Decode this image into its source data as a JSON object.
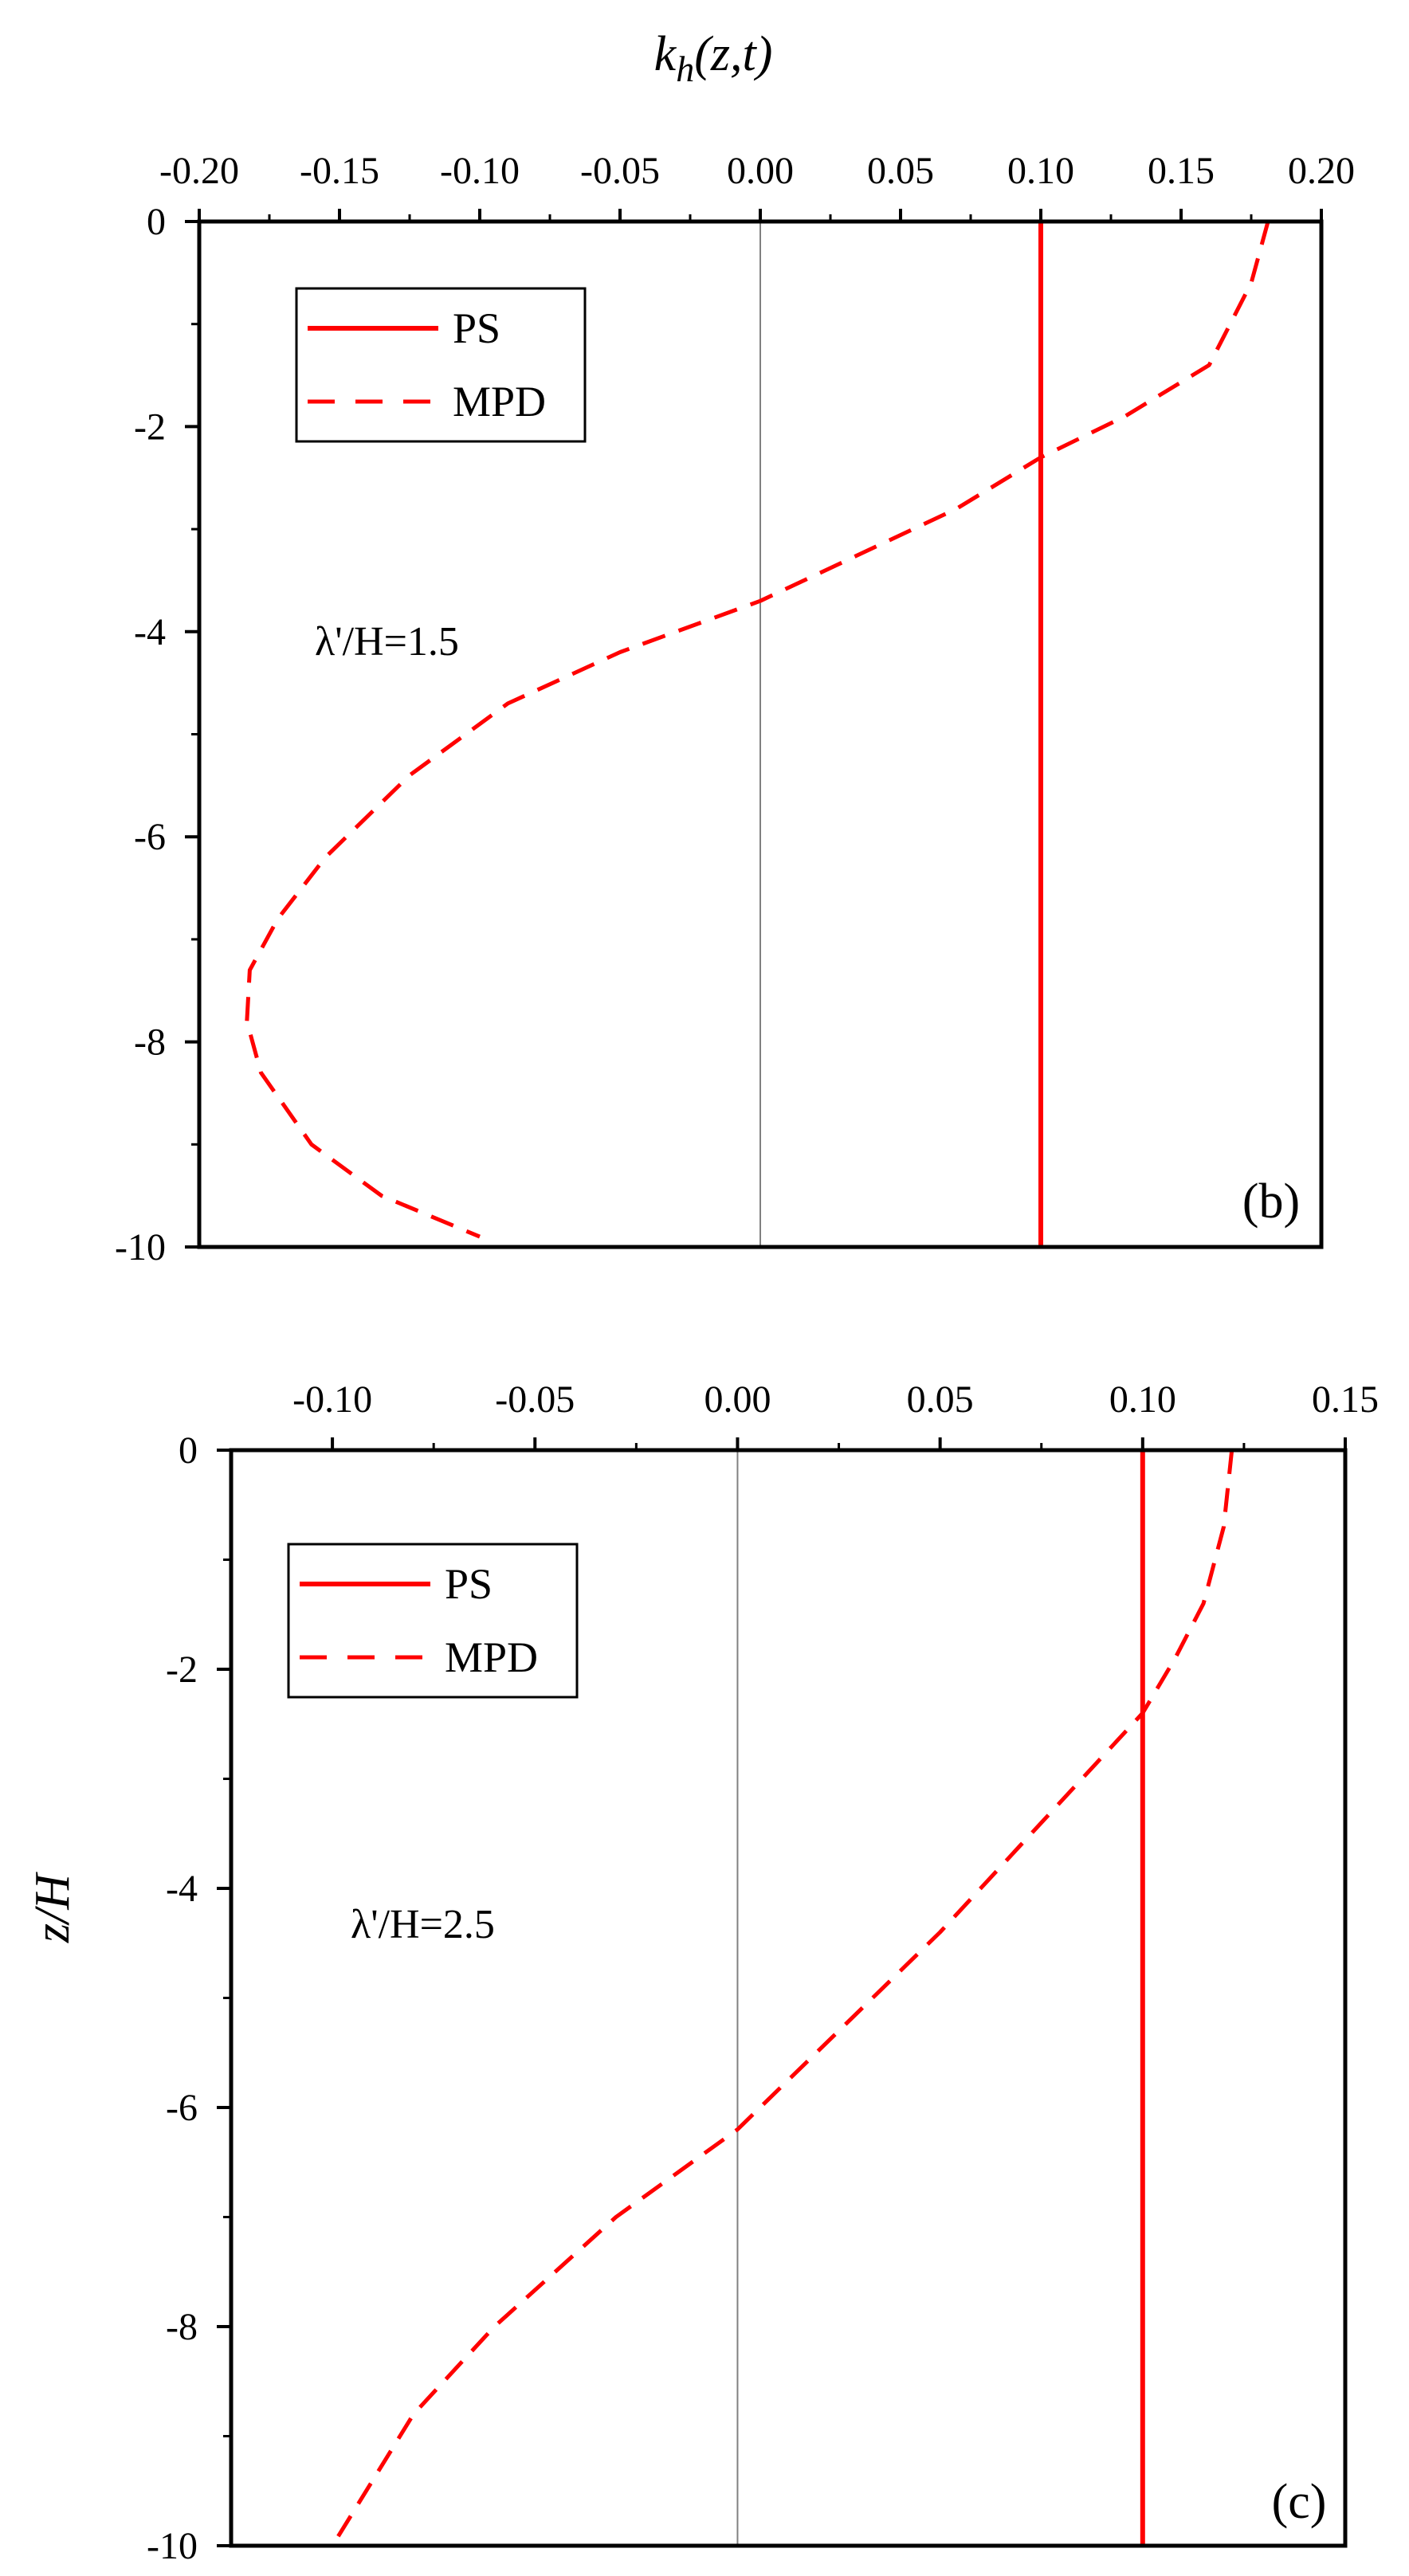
{
  "figure": {
    "top_axis_title": "k_h(z,t)",
    "left_axis_title": "z/H"
  },
  "chart_data": [
    {
      "type": "line",
      "panel_label": "(b)",
      "annotation": "λ'/H=1.5",
      "x_ticks": [
        "-0.20",
        "-0.15",
        "-0.10",
        "-0.05",
        "0.00",
        "0.05",
        "0.10",
        "0.15",
        "0.20"
      ],
      "y_ticks": [
        "0",
        "-2",
        "-4",
        "-6",
        "-8",
        "-10"
      ],
      "xlim": [
        -0.2,
        0.2
      ],
      "ylim": [
        -10,
        0
      ],
      "legend_position": "top-left",
      "color": "#ff0000",
      "series": [
        {
          "name": "PS",
          "style": "solid",
          "x": [
            0.1,
            0.1
          ],
          "y": [
            0,
            -10
          ]
        },
        {
          "name": "MPD",
          "style": "dashed",
          "x": [
            0.181,
            0.175,
            0.16,
            0.13,
            0.1,
            0.07,
            0.0,
            -0.05,
            -0.09,
            -0.125,
            -0.155,
            -0.172,
            -0.182,
            -0.183,
            -0.178,
            -0.16,
            -0.135,
            -0.1
          ],
          "y": [
            0,
            -0.6,
            -1.4,
            -1.9,
            -2.3,
            -2.8,
            -3.7,
            -4.2,
            -4.7,
            -5.4,
            -6.2,
            -6.8,
            -7.3,
            -7.8,
            -8.3,
            -9.0,
            -9.5,
            -9.9
          ]
        }
      ]
    },
    {
      "type": "line",
      "panel_label": "(c)",
      "annotation": "λ'/H=2.5",
      "x_ticks": [
        "-0.10",
        "-0.05",
        "0.00",
        "0.05",
        "0.10",
        "0.15"
      ],
      "y_ticks": [
        "0",
        "-2",
        "-4",
        "-6",
        "-8",
        "-10"
      ],
      "xlim": [
        -0.125,
        0.15
      ],
      "ylim": [
        -10,
        0
      ],
      "legend_position": "top-left",
      "color": "#ff0000",
      "series": [
        {
          "name": "PS",
          "style": "solid",
          "x": [
            0.1,
            0.1
          ],
          "y": [
            0,
            -10
          ]
        },
        {
          "name": "MPD",
          "style": "dashed",
          "x": [
            0.122,
            0.12,
            0.115,
            0.108,
            0.1,
            0.09,
            0.07,
            0.05,
            0.025,
            0.0,
            -0.03,
            -0.06,
            -0.08,
            -0.1
          ],
          "y": [
            0,
            -0.7,
            -1.4,
            -1.9,
            -2.4,
            -2.8,
            -3.6,
            -4.4,
            -5.3,
            -6.2,
            -7.0,
            -8.0,
            -8.8,
            -10.0
          ]
        }
      ]
    }
  ]
}
